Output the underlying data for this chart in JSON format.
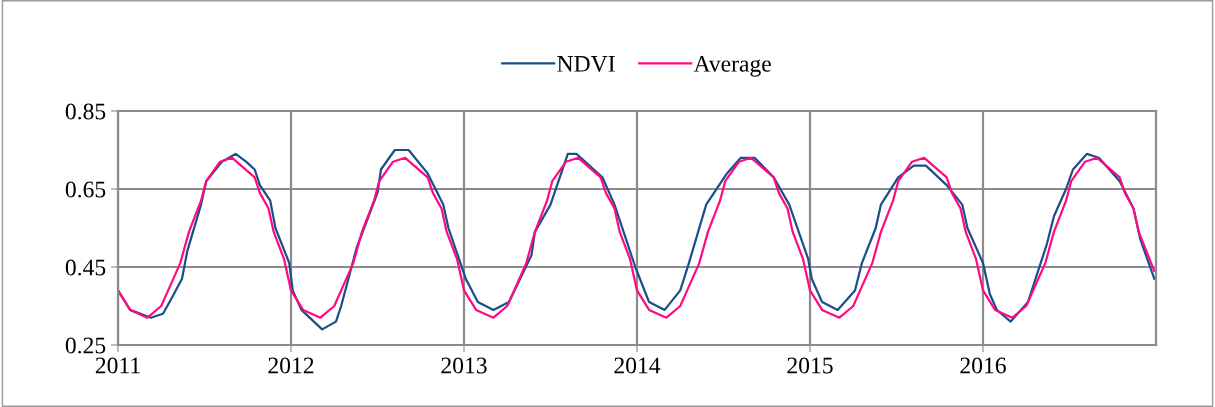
{
  "chart_data": {
    "type": "line",
    "xlim": [
      2011,
      2017
    ],
    "xticks": [
      2011,
      2012,
      2013,
      2014,
      2015,
      2016
    ],
    "ylim": [
      0.25,
      0.85
    ],
    "yticks": [
      {
        "value": 0.25,
        "label": "0.25"
      },
      {
        "value": 0.45,
        "label": "0.45"
      },
      {
        "value": 0.65,
        "label": "0.65"
      },
      {
        "value": 0.85,
        "label": "0.85"
      }
    ],
    "grid": true,
    "legend": "top",
    "line_style": "solid",
    "series": [
      {
        "name": "NDVI",
        "color": "#1a4f8b",
        "x": [
          2011.0,
          2011.07,
          2011.19,
          2011.26,
          2011.31,
          2011.37,
          2011.4,
          2011.48,
          2011.51,
          2011.6,
          2011.68,
          2011.74,
          2011.79,
          2011.82,
          2011.88,
          2011.91,
          2011.99,
          2012.01,
          2012.06,
          2012.18,
          2012.26,
          2012.29,
          2012.38,
          2012.5,
          2012.52,
          2012.6,
          2012.68,
          2012.79,
          2012.88,
          2012.91,
          2013.01,
          2013.08,
          2013.17,
          2013.26,
          2013.39,
          2013.41,
          2013.5,
          2013.6,
          2013.65,
          2013.8,
          2013.87,
          2013.99,
          2014.07,
          2014.16,
          2014.25,
          2014.3,
          2014.4,
          2014.52,
          2014.6,
          2014.68,
          2014.79,
          2014.88,
          2014.99,
          2015.01,
          2015.07,
          2015.16,
          2015.26,
          2015.3,
          2015.38,
          2015.41,
          2015.51,
          2015.6,
          2015.67,
          2015.79,
          2015.88,
          2015.91,
          2016.0,
          2016.04,
          2016.08,
          2016.16,
          2016.26,
          2016.37,
          2016.41,
          2016.48,
          2016.52,
          2016.6,
          2016.67,
          2016.79,
          2016.87,
          2016.91,
          2016.99
        ],
        "values": [
          0.39,
          0.34,
          0.32,
          0.33,
          0.37,
          0.42,
          0.49,
          0.61,
          0.67,
          0.72,
          0.74,
          0.72,
          0.7,
          0.66,
          0.62,
          0.55,
          0.46,
          0.39,
          0.34,
          0.29,
          0.31,
          0.35,
          0.5,
          0.64,
          0.7,
          0.75,
          0.75,
          0.69,
          0.61,
          0.55,
          0.42,
          0.36,
          0.34,
          0.36,
          0.48,
          0.54,
          0.61,
          0.74,
          0.74,
          0.68,
          0.61,
          0.45,
          0.36,
          0.34,
          0.39,
          0.46,
          0.61,
          0.69,
          0.73,
          0.73,
          0.68,
          0.61,
          0.47,
          0.42,
          0.36,
          0.34,
          0.39,
          0.46,
          0.55,
          0.61,
          0.68,
          0.71,
          0.71,
          0.66,
          0.61,
          0.55,
          0.46,
          0.38,
          0.34,
          0.31,
          0.36,
          0.51,
          0.58,
          0.65,
          0.7,
          0.74,
          0.73,
          0.67,
          0.6,
          0.52,
          0.42
        ]
      },
      {
        "name": "Average",
        "color": "#ff0a80",
        "x": [
          2011.0,
          2011.07,
          2011.17,
          2011.25,
          2011.29,
          2011.36,
          2011.41,
          2011.48,
          2011.51,
          2011.59,
          2011.66,
          2011.79,
          2011.82,
          2011.87,
          2011.9,
          2011.96,
          2012.0,
          2012.07,
          2012.17,
          2012.25,
          2012.29,
          2012.36,
          2012.41,
          2012.48,
          2012.51,
          2012.59,
          2012.66,
          2012.79,
          2012.82,
          2012.87,
          2012.9,
          2012.96,
          2013.0,
          2013.07,
          2013.17,
          2013.25,
          2013.29,
          2013.36,
          2013.41,
          2013.48,
          2013.51,
          2013.59,
          2013.66,
          2013.79,
          2013.82,
          2013.87,
          2013.9,
          2013.96,
          2014.0,
          2014.07,
          2014.17,
          2014.25,
          2014.29,
          2014.36,
          2014.41,
          2014.48,
          2014.51,
          2014.59,
          2014.66,
          2014.79,
          2014.82,
          2014.87,
          2014.9,
          2014.96,
          2015.0,
          2015.07,
          2015.17,
          2015.25,
          2015.29,
          2015.36,
          2015.41,
          2015.48,
          2015.51,
          2015.59,
          2015.66,
          2015.79,
          2015.82,
          2015.87,
          2015.9,
          2015.96,
          2016.0,
          2016.07,
          2016.17,
          2016.25,
          2016.29,
          2016.36,
          2016.41,
          2016.48,
          2016.51,
          2016.59,
          2016.66,
          2016.79,
          2016.82,
          2016.87,
          2016.9,
          2016.99
        ],
        "values": [
          0.39,
          0.34,
          0.32,
          0.35,
          0.39,
          0.46,
          0.54,
          0.62,
          0.67,
          0.72,
          0.73,
          0.68,
          0.64,
          0.6,
          0.54,
          0.47,
          0.39,
          0.34,
          0.32,
          0.35,
          0.39,
          0.46,
          0.54,
          0.62,
          0.67,
          0.72,
          0.73,
          0.68,
          0.64,
          0.6,
          0.54,
          0.47,
          0.39,
          0.34,
          0.32,
          0.35,
          0.39,
          0.46,
          0.54,
          0.62,
          0.67,
          0.72,
          0.73,
          0.68,
          0.64,
          0.6,
          0.54,
          0.47,
          0.39,
          0.34,
          0.32,
          0.35,
          0.39,
          0.46,
          0.54,
          0.62,
          0.67,
          0.72,
          0.73,
          0.68,
          0.64,
          0.6,
          0.54,
          0.47,
          0.39,
          0.34,
          0.32,
          0.35,
          0.39,
          0.46,
          0.54,
          0.62,
          0.67,
          0.72,
          0.73,
          0.68,
          0.64,
          0.6,
          0.54,
          0.47,
          0.39,
          0.34,
          0.32,
          0.35,
          0.39,
          0.46,
          0.54,
          0.62,
          0.67,
          0.72,
          0.73,
          0.68,
          0.64,
          0.6,
          0.54,
          0.44
        ]
      }
    ]
  }
}
